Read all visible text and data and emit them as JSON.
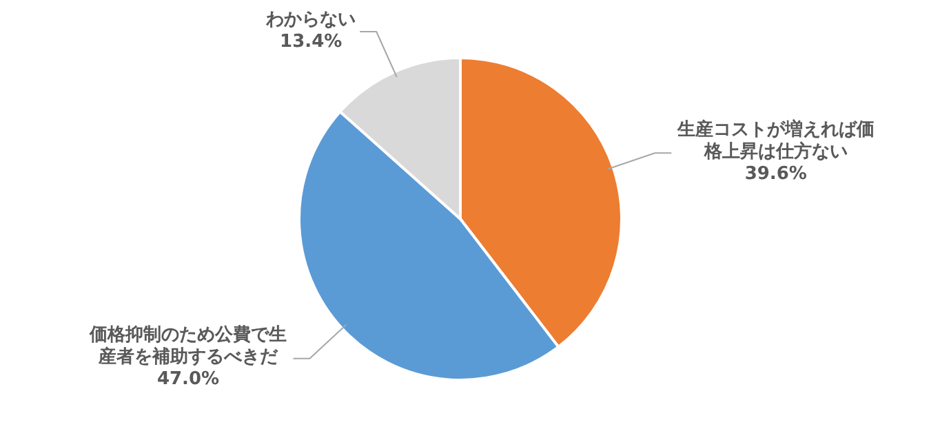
{
  "chart_data": {
    "type": "pie",
    "categories": [
      "生産コストが増えれば価格上昇は仕方ない",
      "価格抑制のため公費で生産者を補助するべきだ",
      "わからない"
    ],
    "values": [
      39.6,
      47.0,
      13.4
    ],
    "colors": [
      "#ed7d31",
      "#5b9bd5",
      "#d9d9d9"
    ],
    "value_labels": [
      "39.6%",
      "47.0%",
      "13.4%"
    ]
  }
}
